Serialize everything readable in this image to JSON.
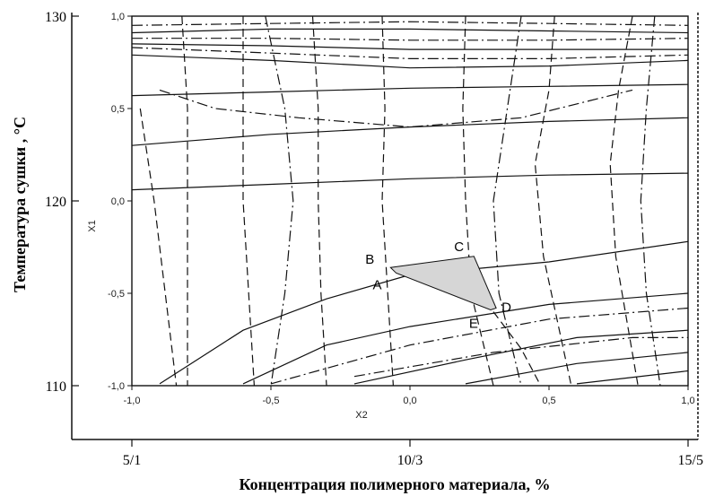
{
  "chart_data": {
    "type": "contour",
    "inner_axes": {
      "x": {
        "label": "X2",
        "range": [
          -1.0,
          1.0
        ],
        "ticks": [
          "-1,0",
          "-0,5",
          "0,0",
          "0,5",
          "1,0"
        ]
      },
      "y": {
        "label": "X1",
        "range": [
          -1.0,
          1.0
        ],
        "ticks": [
          "-1,0",
          "-0,5",
          "0,0",
          "0,5",
          "1,0"
        ]
      }
    },
    "outer_axes": {
      "x": {
        "label": "Концентрация полимерного материала, %",
        "ticks": [
          "5/1",
          "10/3",
          "15/5"
        ]
      },
      "y": {
        "label": "Температура сушки , °C",
        "ticks": [
          "110",
          "120",
          "130"
        ]
      }
    },
    "feasible_region": {
      "vertices": [
        "A",
        "B",
        "C",
        "D",
        "E"
      ],
      "points": [
        {
          "label": "A",
          "x": -0.05,
          "y": -0.39
        },
        {
          "label": "B",
          "x": -0.07,
          "y": -0.36
        },
        {
          "label": "C",
          "x": 0.23,
          "y": -0.3
        },
        {
          "label": "D",
          "x": 0.31,
          "y": -0.58
        },
        {
          "label": "E",
          "x": 0.29,
          "y": -0.59
        }
      ]
    },
    "contours": {
      "solid": [
        [
          [
            -1.0,
            0.91
          ],
          [
            -0.5,
            0.93
          ],
          [
            0.0,
            0.93
          ],
          [
            0.5,
            0.92
          ],
          [
            1.0,
            0.91
          ]
        ],
        [
          [
            -1.0,
            0.85
          ],
          [
            -0.5,
            0.84
          ],
          [
            0.0,
            0.82
          ],
          [
            0.5,
            0.82
          ],
          [
            1.0,
            0.82
          ]
        ],
        [
          [
            -1.0,
            0.79
          ],
          [
            -0.5,
            0.76
          ],
          [
            0.0,
            0.72
          ],
          [
            0.5,
            0.73
          ],
          [
            1.0,
            0.76
          ]
        ],
        [
          [
            -1.0,
            0.57
          ],
          [
            -0.5,
            0.59
          ],
          [
            0.0,
            0.61
          ],
          [
            0.5,
            0.62
          ],
          [
            1.0,
            0.63
          ]
        ],
        [
          [
            -1.0,
            0.3
          ],
          [
            -0.5,
            0.36
          ],
          [
            0.0,
            0.4
          ],
          [
            0.5,
            0.43
          ],
          [
            1.0,
            0.45
          ]
        ],
        [
          [
            -1.0,
            0.06
          ],
          [
            -0.5,
            0.09
          ],
          [
            0.0,
            0.12
          ],
          [
            0.5,
            0.14
          ],
          [
            1.0,
            0.15
          ]
        ],
        [
          [
            -0.9,
            -0.99
          ],
          [
            -0.6,
            -0.7
          ],
          [
            -0.3,
            -0.53
          ],
          [
            0.0,
            -0.4
          ],
          [
            0.5,
            -0.33
          ],
          [
            1.0,
            -0.22
          ]
        ],
        [
          [
            -0.6,
            -0.99
          ],
          [
            -0.3,
            -0.78
          ],
          [
            0.0,
            -0.68
          ],
          [
            0.5,
            -0.56
          ],
          [
            1.0,
            -0.5
          ]
        ],
        [
          [
            -0.2,
            -0.99
          ],
          [
            0.2,
            -0.86
          ],
          [
            0.6,
            -0.74
          ],
          [
            1.0,
            -0.7
          ]
        ],
        [
          [
            0.2,
            -0.99
          ],
          [
            0.6,
            -0.88
          ],
          [
            1.0,
            -0.82
          ]
        ],
        [
          [
            0.6,
            -0.99
          ],
          [
            1.0,
            -0.92
          ]
        ]
      ],
      "dashed": [
        [
          [
            -0.97,
            0.5
          ],
          [
            -0.92,
            0.0
          ],
          [
            -0.88,
            -0.5
          ],
          [
            -0.84,
            -1.0
          ]
        ],
        [
          [
            -0.82,
            1.0
          ],
          [
            -0.8,
            0.5
          ],
          [
            -0.8,
            0.0
          ],
          [
            -0.8,
            -0.5
          ],
          [
            -0.8,
            -1.0
          ]
        ],
        [
          [
            -0.6,
            1.0
          ],
          [
            -0.6,
            0.5
          ],
          [
            -0.6,
            0.0
          ],
          [
            -0.58,
            -0.5
          ],
          [
            -0.56,
            -1.0
          ]
        ],
        [
          [
            -0.35,
            1.0
          ],
          [
            -0.33,
            0.5
          ],
          [
            -0.33,
            0.0
          ],
          [
            -0.32,
            -0.5
          ],
          [
            -0.3,
            -1.0
          ]
        ],
        [
          [
            -0.1,
            1.0
          ],
          [
            -0.09,
            0.5
          ],
          [
            -0.1,
            0.0
          ],
          [
            -0.08,
            -0.5
          ],
          [
            -0.06,
            -1.0
          ]
        ],
        [
          [
            0.2,
            1.0
          ],
          [
            0.19,
            0.5
          ],
          [
            0.2,
            0.0
          ],
          [
            0.22,
            -0.5
          ],
          [
            0.3,
            -1.0
          ]
        ],
        [
          [
            0.52,
            1.0
          ],
          [
            0.5,
            0.6
          ],
          [
            0.45,
            0.2
          ],
          [
            0.48,
            -0.3
          ],
          [
            0.58,
            -1.0
          ]
        ],
        [
          [
            0.8,
            1.0
          ],
          [
            0.75,
            0.6
          ],
          [
            0.72,
            0.2
          ],
          [
            0.74,
            -0.3
          ],
          [
            0.82,
            -1.0
          ]
        ],
        [
          [
            0.3,
            -0.6
          ],
          [
            0.4,
            -0.8
          ],
          [
            0.47,
            -1.0
          ]
        ]
      ],
      "dashdot": [
        [
          [
            -1.0,
            0.95
          ],
          [
            -0.5,
            0.96
          ],
          [
            0.0,
            0.97
          ],
          [
            0.5,
            0.96
          ],
          [
            1.0,
            0.95
          ]
        ],
        [
          [
            -1.0,
            0.88
          ],
          [
            -0.5,
            0.88
          ],
          [
            0.0,
            0.87
          ],
          [
            0.5,
            0.87
          ],
          [
            1.0,
            0.88
          ]
        ],
        [
          [
            -1.0,
            0.83
          ],
          [
            -0.5,
            0.8
          ],
          [
            0.0,
            0.77
          ],
          [
            0.5,
            0.77
          ],
          [
            1.0,
            0.79
          ]
        ],
        [
          [
            -0.9,
            0.6
          ],
          [
            -0.7,
            0.5
          ],
          [
            -0.4,
            0.45
          ],
          [
            0.0,
            0.4
          ],
          [
            0.4,
            0.45
          ],
          [
            0.8,
            0.6
          ]
        ],
        [
          [
            -0.52,
            1.0
          ],
          [
            -0.45,
            0.5
          ],
          [
            -0.42,
            0.0
          ],
          [
            -0.45,
            -0.5
          ],
          [
            -0.5,
            -1.0
          ]
        ],
        [
          [
            0.4,
            1.0
          ],
          [
            0.35,
            0.5
          ],
          [
            0.3,
            0.0
          ],
          [
            0.32,
            -0.5
          ],
          [
            0.4,
            -1.0
          ]
        ],
        [
          [
            0.88,
            1.0
          ],
          [
            0.85,
            0.5
          ],
          [
            0.83,
            0.0
          ],
          [
            0.85,
            -0.5
          ],
          [
            0.9,
            -1.0
          ]
        ],
        [
          [
            -0.5,
            -0.99
          ],
          [
            0.0,
            -0.78
          ],
          [
            0.5,
            -0.64
          ],
          [
            1.0,
            -0.58
          ]
        ],
        [
          [
            -0.2,
            -0.95
          ],
          [
            0.3,
            -0.82
          ],
          [
            0.8,
            -0.74
          ],
          [
            1.0,
            -0.74
          ]
        ]
      ]
    }
  }
}
